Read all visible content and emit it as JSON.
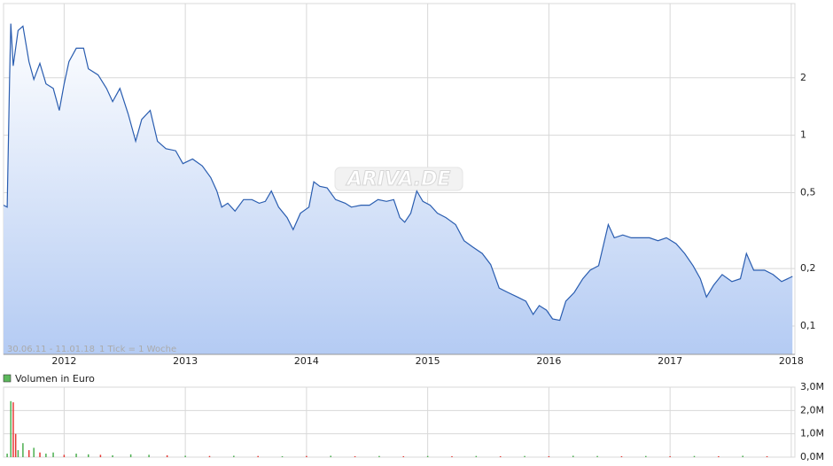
{
  "chart_data": [
    {
      "type": "area",
      "date_range": "30.06.11 - 11.01.18",
      "tick_note": "1 Tick = 1 Woche",
      "watermark": "ARIVA.DE",
      "color": "#2a5db0",
      "log_scale": true,
      "grid": true,
      "x": [
        2011.5,
        2011.53,
        2011.55,
        2011.56,
        2011.58,
        2011.62,
        2011.66,
        2011.71,
        2011.75,
        2011.8,
        2011.85,
        2011.91,
        2011.96,
        2012.0,
        2012.04,
        2012.1,
        2012.16,
        2012.2,
        2012.28,
        2012.35,
        2012.4,
        2012.46,
        2012.53,
        2012.59,
        2012.64,
        2012.71,
        2012.77,
        2012.84,
        2012.92,
        2012.98,
        2013.06,
        2013.14,
        2013.21,
        2013.26,
        2013.3,
        2013.35,
        2013.41,
        2013.48,
        2013.55,
        2013.61,
        2013.66,
        2013.71,
        2013.77,
        2013.84,
        2013.89,
        2013.95,
        2014.02,
        2014.06,
        2014.11,
        2014.17,
        2014.24,
        2014.32,
        2014.37,
        2014.45,
        2014.52,
        2014.59,
        2014.66,
        2014.72,
        2014.77,
        2014.81,
        2014.86,
        2014.91,
        2014.96,
        2015.02,
        2015.08,
        2015.15,
        2015.23,
        2015.3,
        2015.37,
        2015.45,
        2015.52,
        2015.59,
        2015.66,
        2015.74,
        2015.81,
        2015.87,
        2015.92,
        2015.98,
        2016.03,
        2016.09,
        2016.14,
        2016.21,
        2016.28,
        2016.34,
        2016.41,
        2016.49,
        2016.54,
        2016.61,
        2016.68,
        2016.76,
        2016.83,
        2016.9,
        2016.97,
        2017.05,
        2017.12,
        2017.19,
        2017.25,
        2017.3,
        2017.36,
        2017.43,
        2017.51,
        2017.58,
        2017.63,
        2017.69,
        2017.78,
        2017.85,
        2017.92,
        2018.01
      ],
      "values": [
        0.43,
        0.42,
        1.96,
        3.85,
        2.31,
        3.54,
        3.73,
        2.43,
        1.96,
        2.38,
        1.86,
        1.76,
        1.35,
        1.86,
        2.43,
        2.86,
        2.86,
        2.23,
        2.07,
        1.76,
        1.5,
        1.76,
        1.28,
        0.93,
        1.21,
        1.35,
        0.93,
        0.85,
        0.83,
        0.71,
        0.75,
        0.69,
        0.6,
        0.51,
        0.42,
        0.44,
        0.4,
        0.46,
        0.46,
        0.44,
        0.45,
        0.51,
        0.42,
        0.37,
        0.32,
        0.39,
        0.42,
        0.57,
        0.54,
        0.53,
        0.46,
        0.44,
        0.42,
        0.43,
        0.43,
        0.46,
        0.45,
        0.46,
        0.37,
        0.35,
        0.39,
        0.51,
        0.45,
        0.43,
        0.39,
        0.37,
        0.34,
        0.28,
        0.26,
        0.24,
        0.21,
        0.158,
        0.15,
        0.142,
        0.135,
        0.115,
        0.128,
        0.121,
        0.109,
        0.107,
        0.135,
        0.15,
        0.177,
        0.196,
        0.207,
        0.34,
        0.29,
        0.3,
        0.29,
        0.29,
        0.29,
        0.28,
        0.29,
        0.27,
        0.24,
        0.207,
        0.177,
        0.142,
        0.164,
        0.186,
        0.171,
        0.177,
        0.24,
        0.196,
        0.196,
        0.186,
        0.171,
        0.182
      ],
      "xlim": [
        2011.5,
        2018.03
      ],
      "xticks": [
        2012,
        2013,
        2014,
        2015,
        2016,
        2017,
        2018
      ],
      "ylim": [
        0.071,
        4.9
      ],
      "yticks": [
        {
          "value": 0.1,
          "label": "0,1"
        },
        {
          "value": 0.2,
          "label": "0,2"
        },
        {
          "value": 0.5,
          "label": "0,5"
        },
        1,
        2
      ]
    },
    {
      "type": "bar",
      "legend": "Volumen in Euro",
      "legend_color": "#5cb85c",
      "grid": true,
      "x": [
        2011.53,
        2011.56,
        2011.58,
        2011.6,
        2011.62,
        2011.66,
        2011.71,
        2011.75,
        2011.8,
        2011.85,
        2011.91,
        2012.0,
        2012.1,
        2012.2,
        2012.3,
        2012.4,
        2012.55,
        2012.7,
        2012.85,
        2013.0,
        2013.2,
        2013.4,
        2013.6,
        2013.8,
        2014.0,
        2014.2,
        2014.4,
        2014.6,
        2014.8,
        2015.0,
        2015.2,
        2015.4,
        2015.6,
        2015.8,
        2016.0,
        2016.2,
        2016.4,
        2016.6,
        2016.8,
        2017.0,
        2017.2,
        2017.4,
        2017.6,
        2017.8
      ],
      "values": [
        150000,
        2400000,
        2350000,
        1000000,
        300000,
        600000,
        300000,
        400000,
        200000,
        150000,
        200000,
        100000,
        150000,
        120000,
        100000,
        80000,
        120000,
        100000,
        80000,
        60000,
        50000,
        60000,
        50000,
        40000,
        50000,
        60000,
        40000,
        50000,
        40000,
        50000,
        40000,
        50000,
        40000,
        50000,
        40000,
        60000,
        50000,
        40000,
        50000,
        40000,
        50000,
        40000,
        60000,
        40000
      ],
      "colors": [
        "#4caf50",
        "#4caf50",
        "#e53935",
        "#e53935",
        "#4caf50",
        "#4caf50",
        "#e53935",
        "#4caf50",
        "#e53935",
        "#4caf50",
        "#4caf50",
        "#e53935",
        "#4caf50",
        "#4caf50",
        "#e53935",
        "#4caf50",
        "#4caf50",
        "#4caf50",
        "#e53935",
        "#4caf50",
        "#e53935",
        "#4caf50",
        "#e53935",
        "#4caf50",
        "#e53935",
        "#4caf50",
        "#e53935",
        "#4caf50",
        "#e53935",
        "#4caf50",
        "#e53935",
        "#4caf50",
        "#e53935",
        "#4caf50",
        "#e53935",
        "#4caf50",
        "#4caf50",
        "#e53935",
        "#4caf50",
        "#e53935",
        "#4caf50",
        "#e53935",
        "#4caf50",
        "#e53935"
      ],
      "ylim": [
        0,
        3000000
      ],
      "yticks": [
        {
          "value": 0,
          "label": "0,0M"
        },
        {
          "value": 1000000,
          "label": "1,0M"
        },
        {
          "value": 2000000,
          "label": "2,0M"
        },
        {
          "value": 3000000,
          "label": "3,0M"
        }
      ]
    }
  ]
}
